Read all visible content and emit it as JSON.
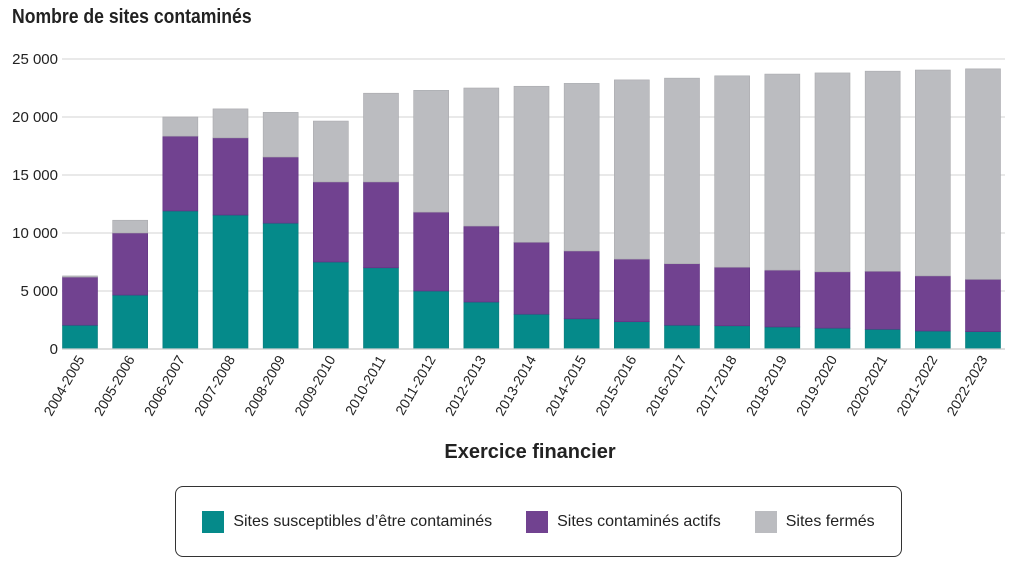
{
  "chart_data": {
    "type": "bar",
    "stacked": true,
    "title": "Nombre de sites contaminés",
    "xlabel": "Exercice financier",
    "ylabel": "",
    "ylim": [
      0,
      25000
    ],
    "yticks": [
      0,
      5000,
      10000,
      15000,
      20000,
      25000
    ],
    "ytick_labels": [
      "0",
      "5 000",
      "10 000",
      "15 000",
      "20 000",
      "25 000"
    ],
    "grid": true,
    "legend_position": "bottom",
    "categories": [
      "2004-2005",
      "2005-2006",
      "2006-2007",
      "2007-2008",
      "2008-2009",
      "2009-2010",
      "2010-2011",
      "2011-2012",
      "2012-2013",
      "2013-2014",
      "2014-2015",
      "2015-2016",
      "2016-2017",
      "2017-2018",
      "2018-2019",
      "2019-2020",
      "2020-2021",
      "2021-2022",
      "2022-2023"
    ],
    "series": [
      {
        "name": "Sites susceptibles d’être contaminés",
        "color": "#058a8a",
        "values": [
          2050,
          4650,
          11900,
          11550,
          10850,
          7500,
          7000,
          5000,
          4050,
          3000,
          2600,
          2350,
          2050,
          2000,
          1900,
          1800,
          1700,
          1550,
          1500
        ]
      },
      {
        "name": "Sites contaminés actifs",
        "color": "#714290",
        "values": [
          4150,
          5350,
          6450,
          6650,
          5700,
          6900,
          7400,
          6800,
          6550,
          6200,
          5850,
          5400,
          5300,
          5050,
          4900,
          4850,
          5000,
          4750,
          4500
        ]
      },
      {
        "name": "Sites fermés",
        "color": "#bbbcc0",
        "values": [
          100,
          1100,
          1650,
          2500,
          3850,
          5250,
          7650,
          10500,
          11900,
          13450,
          14450,
          15450,
          16000,
          16500,
          16900,
          17150,
          17250,
          17750,
          18150
        ]
      }
    ]
  }
}
